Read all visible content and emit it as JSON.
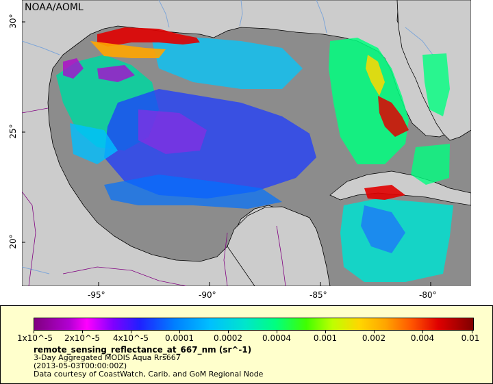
{
  "map": {
    "credit": "NOAA/AOML",
    "lon_ticks": [
      "-95°",
      "-90°",
      "-85°",
      "-80°"
    ],
    "lat_ticks": [
      "30°",
      "25°",
      "20°"
    ],
    "colors": {
      "ocean_nodata": "#8c8c8c",
      "land": "#cccccc",
      "coastline": "#000000",
      "rivers": "#7fa6d8",
      "borders": "#800080"
    }
  },
  "legend": {
    "scale_labels": [
      "1x10^-5",
      "2x10^-5",
      "4x10^-5",
      "0.0001",
      "0.0002",
      "0.0004",
      "0.001",
      "0.002",
      "0.004",
      "0.01"
    ],
    "variable": "remote_sensing_reflectance_at_667_nm (sr^-1)",
    "product": "3-Day Aggregated MODIS Aqua Rrs667",
    "date": "(2013-05-03T00:00:00Z)",
    "courtesy": "Data courtesy of CoastWatch, Carib. and GoM Regional Node"
  }
}
